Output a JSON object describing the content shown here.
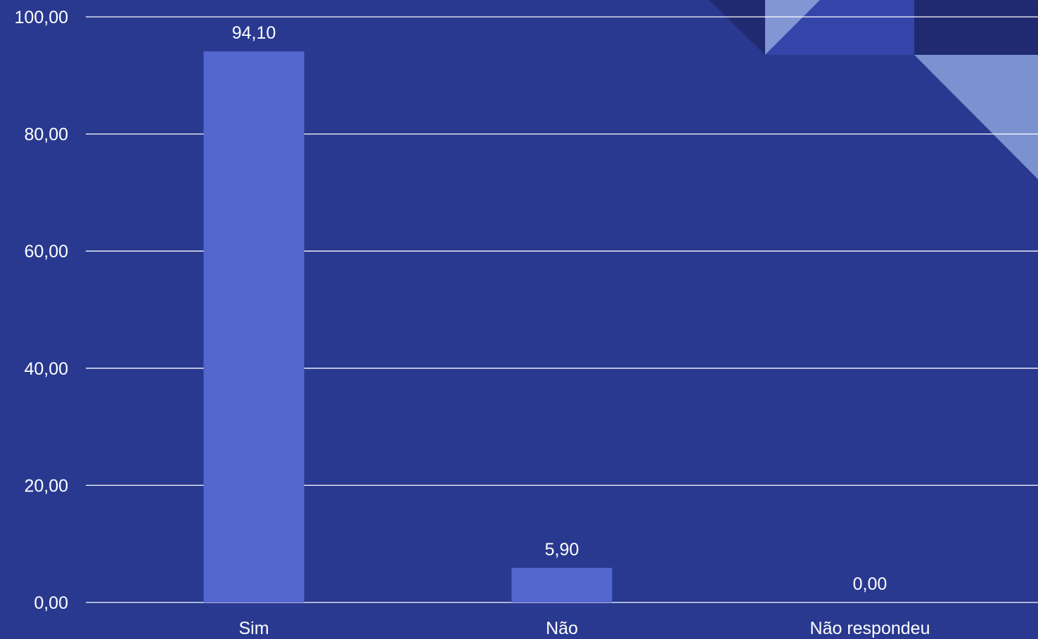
{
  "colors": {
    "background": "#293990",
    "bar": "#5467CF",
    "gridline": "#FFFFFF",
    "text": "#FFFFFF",
    "decor_dark": "#202A70",
    "decor_mid": "#3445AA",
    "decor_light": "#8396D4",
    "decor_pale": "#7B91D0"
  },
  "chart_data": {
    "type": "bar",
    "categories": [
      "Sim",
      "Não",
      "Não respondeu"
    ],
    "values": [
      94.1,
      5.9,
      0.0
    ],
    "data_labels": [
      "94,10",
      "5,90",
      "0,00"
    ],
    "y_ticks": [
      0,
      20,
      40,
      60,
      80,
      100
    ],
    "y_tick_labels": [
      "0,00",
      "20,00",
      "40,00",
      "60,00",
      "80,00",
      "100,00"
    ],
    "ylim": [
      0,
      100
    ],
    "grid": true,
    "legend": "none"
  }
}
